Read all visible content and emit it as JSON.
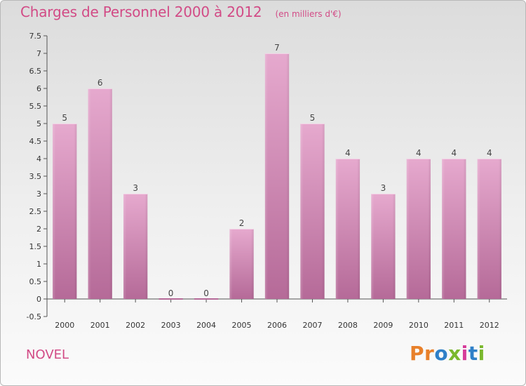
{
  "header": {
    "title": "Charges de Personnel 2000 à 2012",
    "unit": "(en milliers d'€)"
  },
  "footer": {
    "commune": "NOVEL",
    "brand": "Proxiti",
    "brand_colors": [
      "#e8802a",
      "#e8802a",
      "#2f80c8",
      "#7ab82e",
      "#d63c9a",
      "#2f80c8",
      "#7ab82e"
    ]
  },
  "colors": {
    "accent": "#d24b86",
    "bar_top": "#e6a9ce",
    "bar_bottom": "#b56a98"
  },
  "chart_data": {
    "type": "bar",
    "categories": [
      "2000",
      "2001",
      "2002",
      "2003",
      "2004",
      "2005",
      "2006",
      "2007",
      "2008",
      "2009",
      "2010",
      "2011",
      "2012"
    ],
    "values": [
      5,
      6,
      3,
      0,
      0,
      2,
      7,
      5,
      4,
      3,
      4,
      4,
      4
    ],
    "data_labels": [
      "5",
      "6",
      "3",
      "0",
      "0",
      "2",
      "7",
      "5",
      "4",
      "3",
      "4",
      "4",
      "4"
    ],
    "y_ticks": [
      "-0.5",
      "0",
      "0.5",
      "1",
      "1.5",
      "2",
      "2.5",
      "3",
      "3.5",
      "4",
      "4.5",
      "5",
      "5.5",
      "6",
      "6.5",
      "7",
      "7.5"
    ],
    "ylim": [
      -0.5,
      7.5
    ],
    "title": "Charges de Personnel 2000 à 2012",
    "xlabel": "",
    "ylabel": "",
    "grid": false,
    "legend": "none"
  }
}
